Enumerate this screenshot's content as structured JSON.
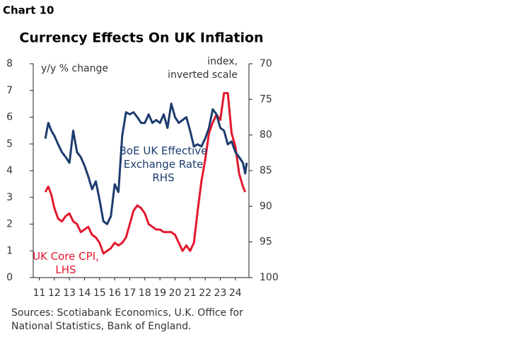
{
  "chart_data": {
    "type": "line",
    "label": "Chart 10",
    "title": "Currency Effects On UK Inflation",
    "y_label": "y/y % change",
    "y2_label": [
      "index,",
      "inverted scale"
    ],
    "xlim": [
      10.6,
      24.9
    ],
    "xticks": [
      11,
      12,
      13,
      14,
      15,
      16,
      17,
      18,
      19,
      20,
      21,
      22,
      23,
      24
    ],
    "ylim": [
      0,
      8
    ],
    "yticks": [
      0,
      1,
      2,
      3,
      4,
      5,
      6,
      7,
      8
    ],
    "y2lim": [
      100,
      70
    ],
    "y2ticks": [
      100,
      95,
      90,
      85,
      80,
      75,
      70
    ],
    "series": [
      {
        "name": "UK Core CPI, LHS",
        "color": "#e3182d",
        "x": [
          11.4,
          11.6,
          11.8,
          12.0,
          12.25,
          12.5,
          12.75,
          13.0,
          13.25,
          13.5,
          13.75,
          14.0,
          14.25,
          14.5,
          14.75,
          15.0,
          15.25,
          15.5,
          15.75,
          16.0,
          16.25,
          16.5,
          16.75,
          17.0,
          17.25,
          17.5,
          17.75,
          18.0,
          18.25,
          18.5,
          18.75,
          19.0,
          19.25,
          19.5,
          19.75,
          20.0,
          20.25,
          20.5,
          20.75,
          21.0,
          21.25,
          21.5,
          21.75,
          22.0,
          22.25,
          22.5,
          22.75,
          23.0,
          23.25,
          23.5,
          23.75,
          24.0,
          24.25,
          24.5,
          24.65
        ],
        "values": [
          3.2,
          3.4,
          3.1,
          2.6,
          2.2,
          2.1,
          2.3,
          2.4,
          2.1,
          2.0,
          1.7,
          1.8,
          1.9,
          1.6,
          1.5,
          1.3,
          0.9,
          1.0,
          1.1,
          1.3,
          1.2,
          1.3,
          1.5,
          2.0,
          2.5,
          2.7,
          2.6,
          2.4,
          2.0,
          1.9,
          1.8,
          1.8,
          1.7,
          1.7,
          1.7,
          1.6,
          1.3,
          1.0,
          1.2,
          1.0,
          1.3,
          2.5,
          3.6,
          4.4,
          5.4,
          5.8,
          6.1,
          5.9,
          6.9,
          6.9,
          5.4,
          4.9,
          3.9,
          3.4,
          3.2
        ]
      },
      {
        "name": "BoE UK Effective Exchange Rate RHS",
        "color": "#1d3c6e",
        "axis": "y2",
        "x": [
          11.4,
          11.6,
          11.8,
          12.0,
          12.25,
          12.5,
          12.75,
          13.0,
          13.25,
          13.5,
          13.75,
          14.0,
          14.25,
          14.5,
          14.75,
          15.0,
          15.25,
          15.5,
          15.75,
          16.0,
          16.25,
          16.5,
          16.75,
          17.0,
          17.25,
          17.5,
          17.75,
          18.0,
          18.25,
          18.5,
          18.75,
          19.0,
          19.25,
          19.5,
          19.75,
          20.0,
          20.25,
          20.5,
          20.75,
          21.0,
          21.25,
          21.5,
          21.75,
          22.0,
          22.25,
          22.5,
          22.75,
          23.0,
          23.25,
          23.5,
          23.75,
          24.0,
          24.25,
          24.5,
          24.65,
          24.75
        ],
        "values": [
          80.5,
          78.3,
          79.4,
          80.1,
          81.3,
          82.4,
          83.1,
          83.9,
          79.4,
          82.4,
          83.1,
          84.3,
          85.8,
          87.6,
          86.5,
          89.1,
          92.1,
          92.5,
          91.4,
          86.9,
          88.0,
          80.1,
          76.8,
          77.1,
          76.8,
          77.5,
          78.3,
          78.3,
          77.1,
          78.3,
          77.9,
          78.3,
          77.1,
          79.0,
          75.6,
          77.5,
          78.3,
          77.9,
          77.5,
          79.4,
          81.6,
          81.3,
          81.6,
          80.5,
          79.0,
          76.4,
          77.1,
          79.0,
          79.4,
          81.3,
          80.9,
          82.4,
          83.1,
          83.9,
          85.4,
          83.9
        ]
      }
    ],
    "sources": "Sources: Scotiabank Economics, U.K. Office for National Statistics, Bank of England."
  }
}
